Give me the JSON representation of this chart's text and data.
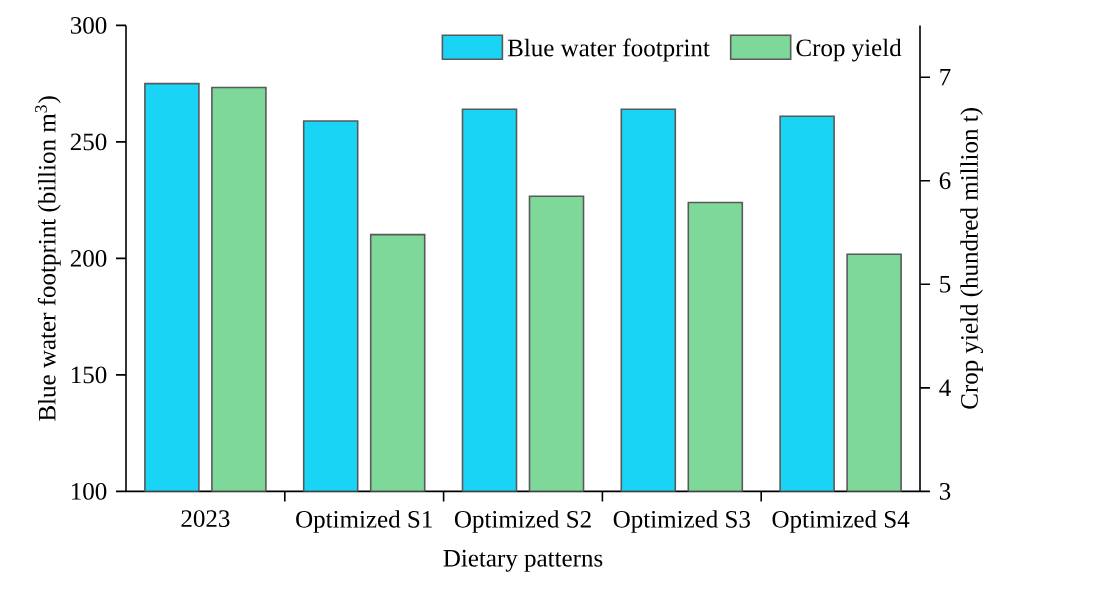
{
  "chart_data": {
    "type": "bar",
    "xlabel": "Dietary patterns",
    "ylabel": "Blue water footprint (billion m$^{3}$)",
    "y2label": "Crop yield (hundred million t)",
    "categories": [
      "2023",
      "Optimized S1",
      "Optimized S2",
      "Optimized S3",
      "Optimized S4"
    ],
    "series": [
      {
        "name": "Blue water footprint",
        "color": "#1ad4f5",
        "values": [
          275,
          259,
          264,
          264,
          261
        ]
      },
      {
        "name": "Crop yield",
        "color": "#7dd89a",
        "values": [
          6.9,
          5.48,
          5.85,
          5.79,
          5.29
        ],
        "axis": "y2"
      }
    ],
    "ylim": [
      100,
      300
    ],
    "yticks": [
      100,
      150,
      200,
      250,
      300
    ],
    "y2lim": [
      3,
      7.5
    ],
    "y2ticks": [
      3,
      4,
      5,
      6,
      7
    ],
    "legend": "top right"
  }
}
